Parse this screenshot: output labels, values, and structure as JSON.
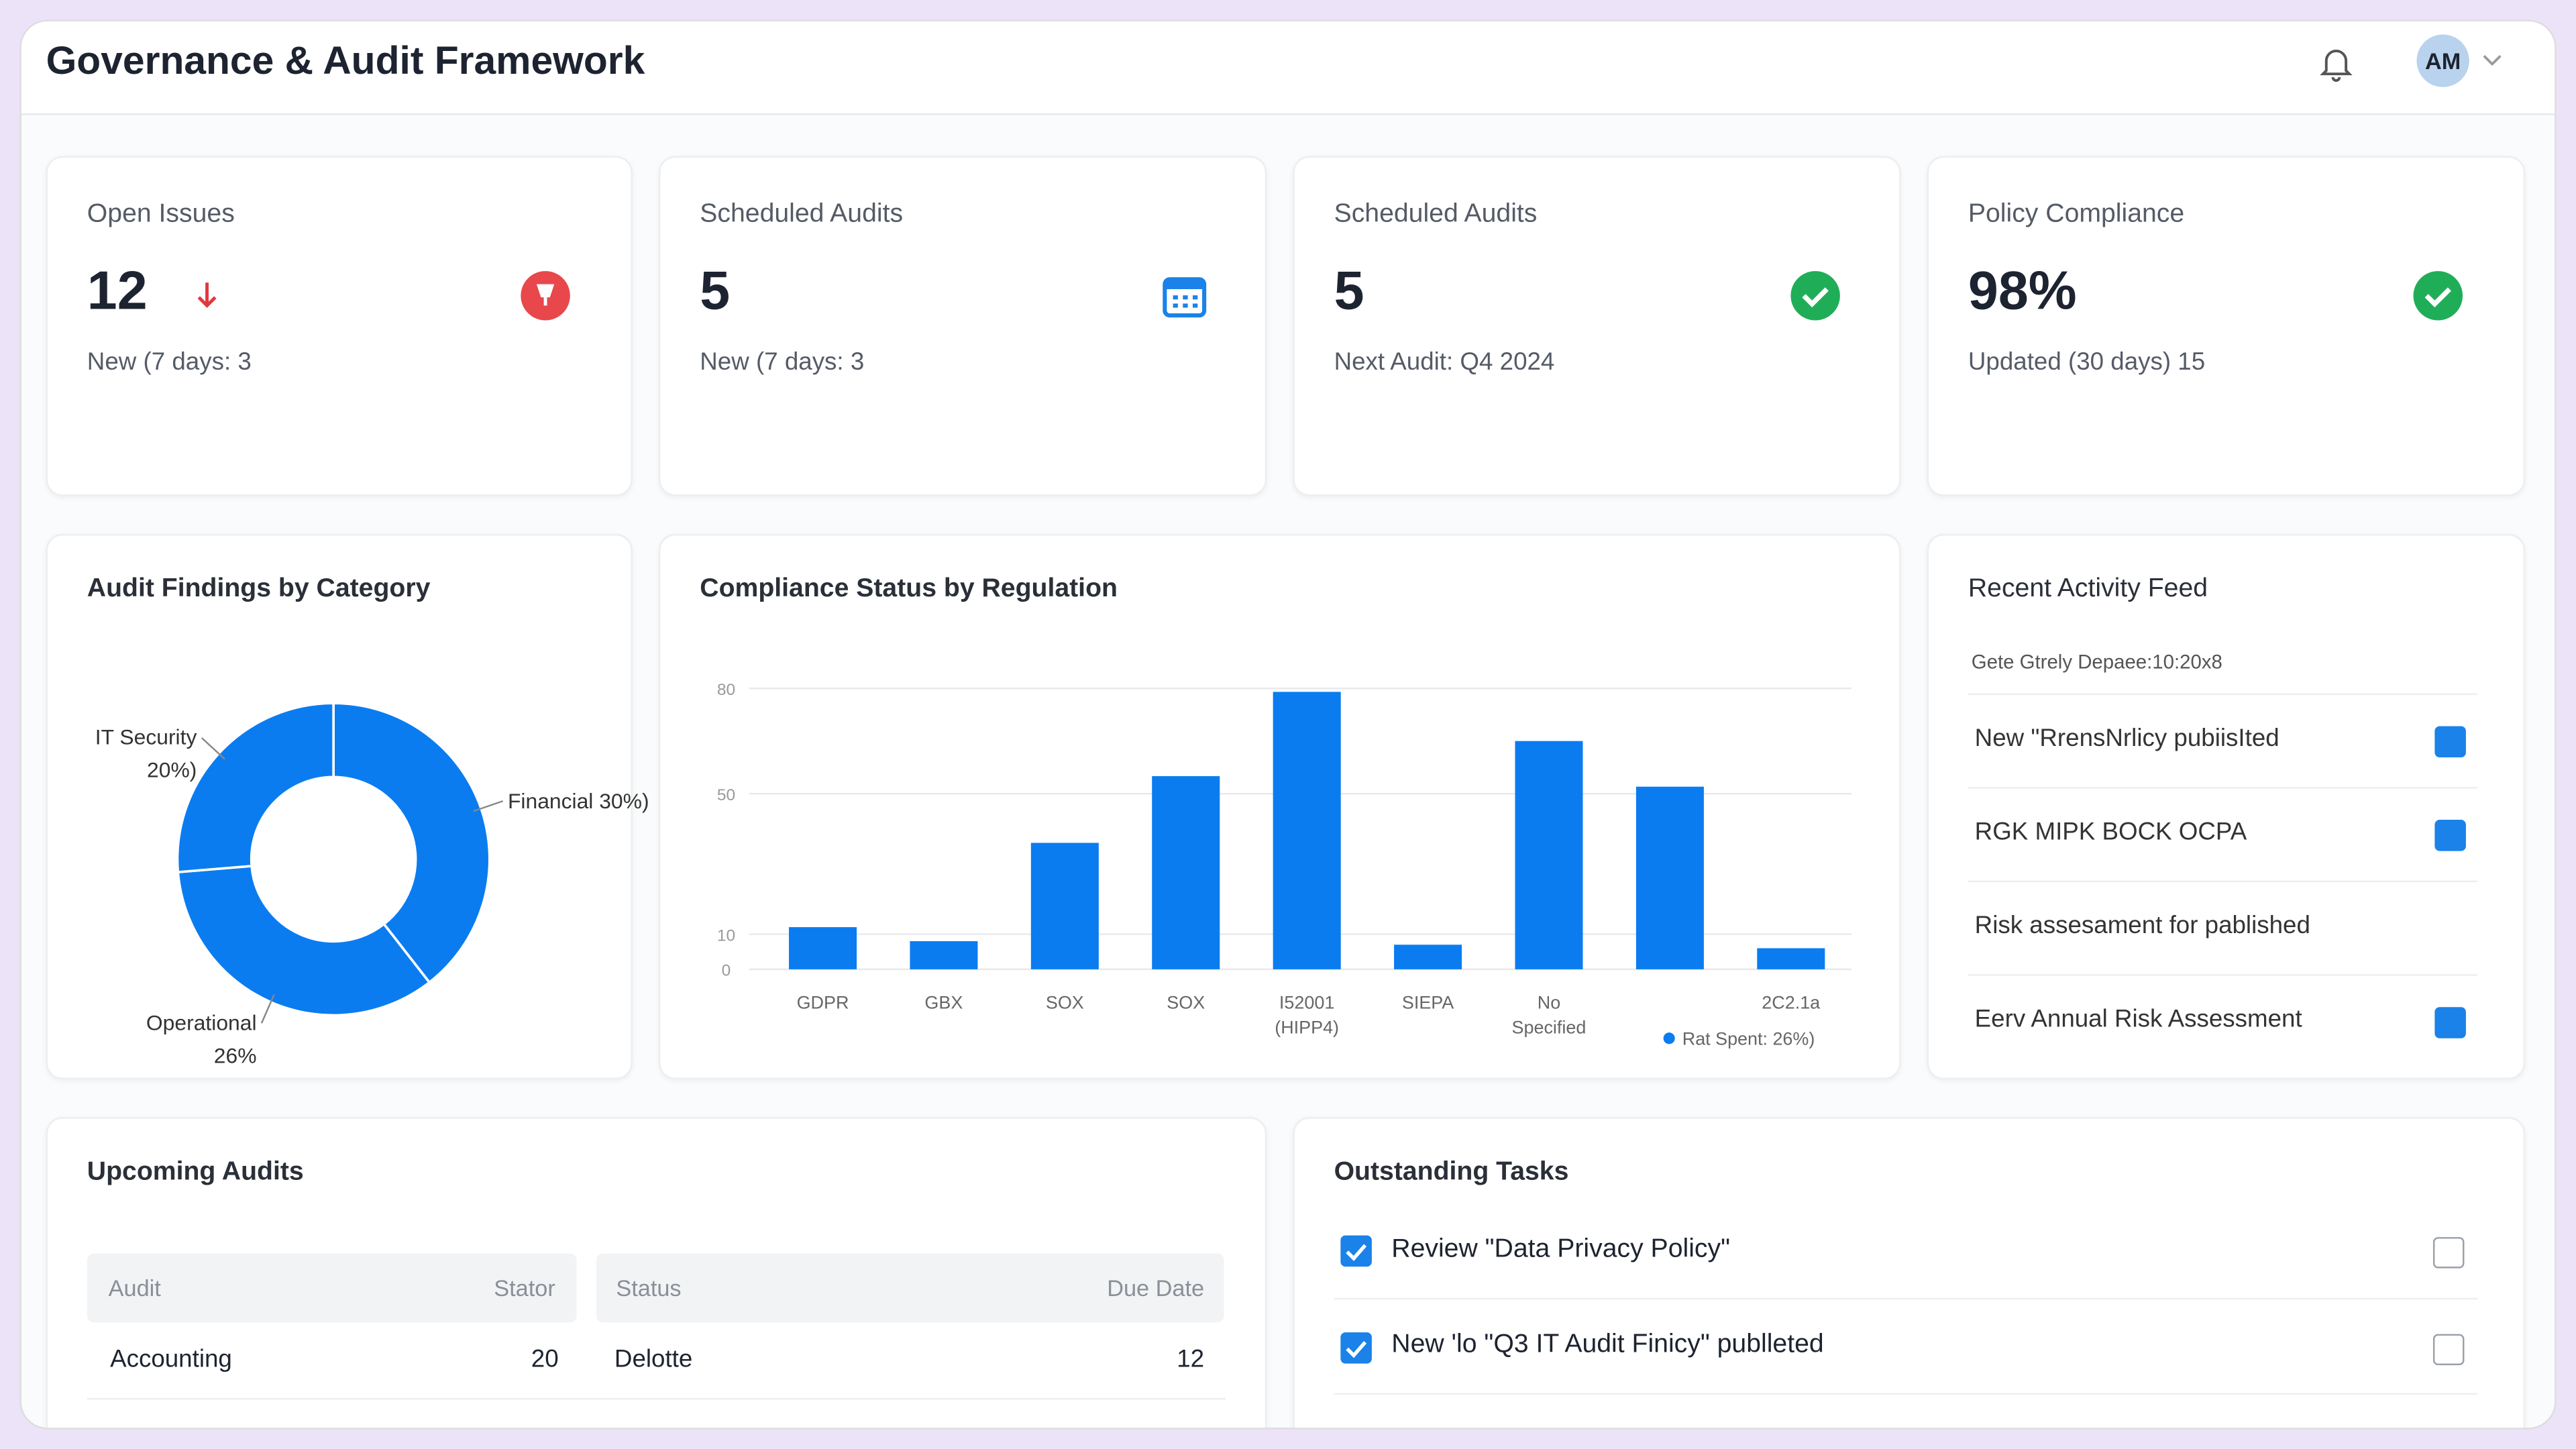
{
  "header": {
    "title": "Governance & Audit Framework",
    "avatar": "AM"
  },
  "kpis": [
    {
      "title": "Open Issues",
      "value": "12",
      "subtitle": "New (7 days: 3"
    },
    {
      "title": "Scheduled Audits",
      "value": "5",
      "subtitle": "New (7 days: 3"
    },
    {
      "title": "Scheduled Audits",
      "value": "5",
      "subtitle": "Next Audit: Q4 2024"
    },
    {
      "title": "Policy Compliance",
      "value": "98%",
      "subtitle": "Updated (30 days) 15"
    }
  ],
  "findings_chart": {
    "type": "pie",
    "title": "Audit Findings by Category",
    "categories": [
      "Financial 30%)",
      "Operational 26%",
      "IT Security 20%)"
    ],
    "values": [
      30,
      26,
      20
    ],
    "color": "#0a7cf0"
  },
  "compliance_chart": {
    "type": "bar",
    "title": "Compliance Status by Regulation",
    "categories": [
      "GDPR",
      "GBX",
      "SOX",
      "SOX",
      "I52001 (HIPP4)",
      "SIEPA",
      "No Specified",
      null,
      "2C2.1a"
    ],
    "series": [
      {
        "name": "Rat Spent: 26%)",
        "color": "#0a7cf0",
        "values": [
          12,
          8,
          36,
          55,
          79,
          7,
          65,
          52,
          6
        ]
      }
    ],
    "ylim": [
      0,
      80
    ],
    "yticks": [
      0,
      10,
      50,
      80
    ],
    "grid": true,
    "legend": "bottom-right"
  },
  "activity": {
    "title": "Recent Activity Feed",
    "subtitle": "Gete Gtrely Depaee:10:20x8",
    "items": [
      "New \"RrensNrlicy pubiisIted",
      "RGK MIPK BOCK OCPA",
      "Risk assesament for pablished",
      "Eerv Annual Risk Assessment"
    ]
  },
  "upcoming": {
    "title": "Upcoming Audits",
    "columns": [
      "Audit",
      "Stator",
      "Status",
      "Due Date"
    ],
    "rows": [
      [
        "Accounting",
        "20",
        "Delotte",
        "12"
      ]
    ]
  },
  "tasks": {
    "title": "Outstanding Tasks",
    "items": [
      "Review \"Data Privacy Policy\"",
      "New 'lo \"Q3 IT Audit Finicy\" publleted"
    ]
  }
}
